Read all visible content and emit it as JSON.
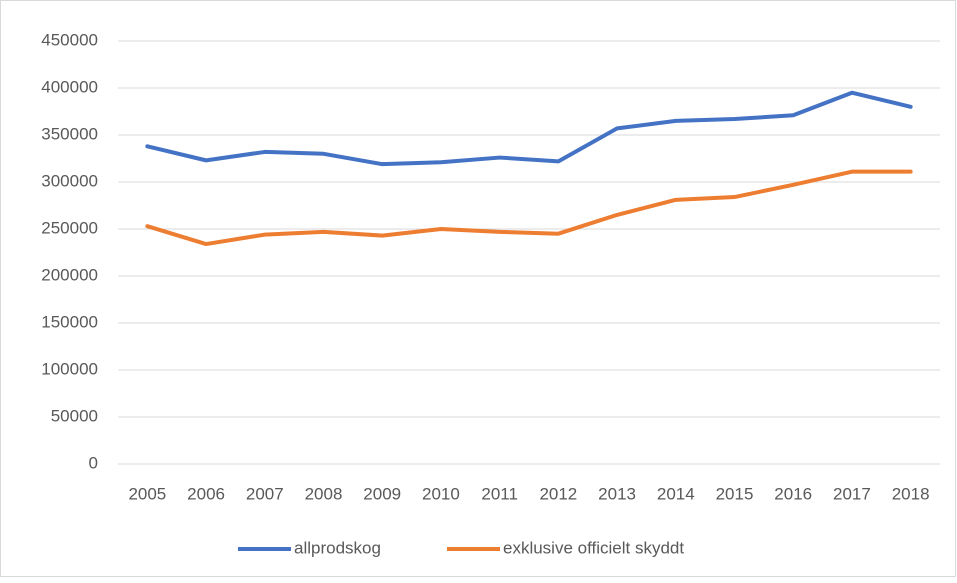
{
  "chart_data": {
    "type": "line",
    "categories": [
      "2005",
      "2006",
      "2007",
      "2008",
      "2009",
      "2010",
      "2011",
      "2012",
      "2013",
      "2014",
      "2015",
      "2016",
      "2017",
      "2018"
    ],
    "series": [
      {
        "name": "allprodskog",
        "color": "#4472c4",
        "values": [
          338000,
          323000,
          332000,
          330000,
          319000,
          321000,
          326000,
          322000,
          357000,
          365000,
          367000,
          371000,
          395000,
          380000
        ]
      },
      {
        "name": "exklusive officielt skyddt",
        "color": "#ed7d31",
        "values": [
          253000,
          234000,
          244000,
          247000,
          243000,
          250000,
          247000,
          245000,
          265000,
          281000,
          284000,
          297000,
          311000,
          311000
        ]
      }
    ],
    "ylim": [
      0,
      450000
    ],
    "yticks": [
      0,
      50000,
      100000,
      150000,
      200000,
      250000,
      300000,
      350000,
      400000,
      450000
    ],
    "grid": true,
    "legend": "bottom"
  }
}
